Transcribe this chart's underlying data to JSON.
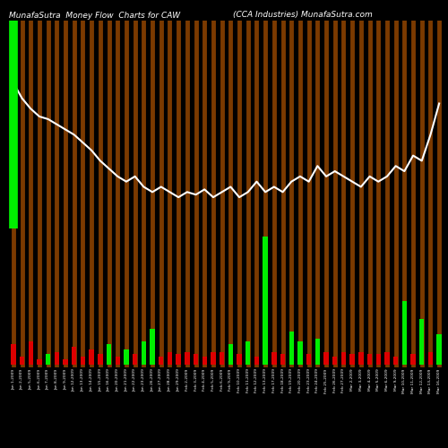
{
  "title_left": "MunafaSutra  Money Flow  Charts for CAW",
  "title_right": "(CCA Industries) MunafaSutra.com",
  "background_color": "#000000",
  "bar_bg_color": "#7B3A00",
  "green_color": "#00EE00",
  "red_color": "#DD0000",
  "line_color": "#FFFFFF",
  "n_bars": 50,
  "categories": [
    "Jan 1,2009",
    "Jan 2,2009",
    "Jan 5,2009",
    "Jan 6,2009",
    "Jan 7,2009",
    "Jan 8,2009",
    "Jan 9,2009",
    "Jan 12,2009",
    "Jan 13,2009",
    "Jan 14,2009",
    "Jan 15,2009",
    "Jan 16,2009",
    "Jan 20,2009",
    "Jan 21,2009",
    "Jan 22,2009",
    "Jan 23,2009",
    "Jan 26,2009",
    "Jan 27,2009",
    "Jan 28,2009",
    "Jan 29,2009",
    "Feb 2,2009",
    "Feb 3,2009",
    "Feb 4,2009",
    "Feb 5,2009",
    "Feb 6,2009",
    "Feb 9,2009",
    "Feb 10,2009",
    "Feb 11,2009",
    "Feb 12,2009",
    "Feb 13,2009",
    "Feb 17,2009",
    "Feb 18,2009",
    "Feb 19,2009",
    "Feb 20,2009",
    "Feb 23,2009",
    "Feb 24,2009",
    "Feb 25,2009",
    "Feb 26,2009",
    "Feb 27,2009",
    "Mar 2,2009",
    "Mar 3,2009",
    "Mar 4,2009",
    "Mar 5,2009",
    "Mar 6,2009",
    "Mar 9,2009",
    "Mar 10,2009",
    "Mar 11,2009",
    "Mar 12,2009",
    "Mar 13,2009",
    "Mar 16,2009"
  ],
  "money_flow_values": [
    -8,
    -3,
    -9,
    -2,
    4,
    -5,
    -2,
    -7,
    -3,
    -6,
    -4,
    8,
    -3,
    6,
    -4,
    9,
    14,
    -3,
    -5,
    -4,
    -5,
    -4,
    -3,
    -5,
    -5,
    8,
    -4,
    9,
    -3,
    50,
    -5,
    -4,
    13,
    9,
    -4,
    10,
    -5,
    -3,
    -5,
    -4,
    -5,
    -4,
    -4,
    -5,
    -3,
    25,
    -4,
    18,
    -5,
    12
  ],
  "price_line": [
    0.88,
    0.82,
    0.78,
    0.75,
    0.74,
    0.72,
    0.7,
    0.68,
    0.65,
    0.62,
    0.58,
    0.55,
    0.52,
    0.5,
    0.52,
    0.48,
    0.46,
    0.48,
    0.46,
    0.44,
    0.46,
    0.45,
    0.47,
    0.44,
    0.46,
    0.48,
    0.44,
    0.46,
    0.5,
    0.46,
    0.48,
    0.46,
    0.5,
    0.52,
    0.5,
    0.56,
    0.52,
    0.54,
    0.52,
    0.5,
    0.48,
    0.52,
    0.5,
    0.52,
    0.56,
    0.54,
    0.6,
    0.58,
    0.68,
    0.8
  ],
  "upper_ratio": 6,
  "lower_ratio": 4
}
